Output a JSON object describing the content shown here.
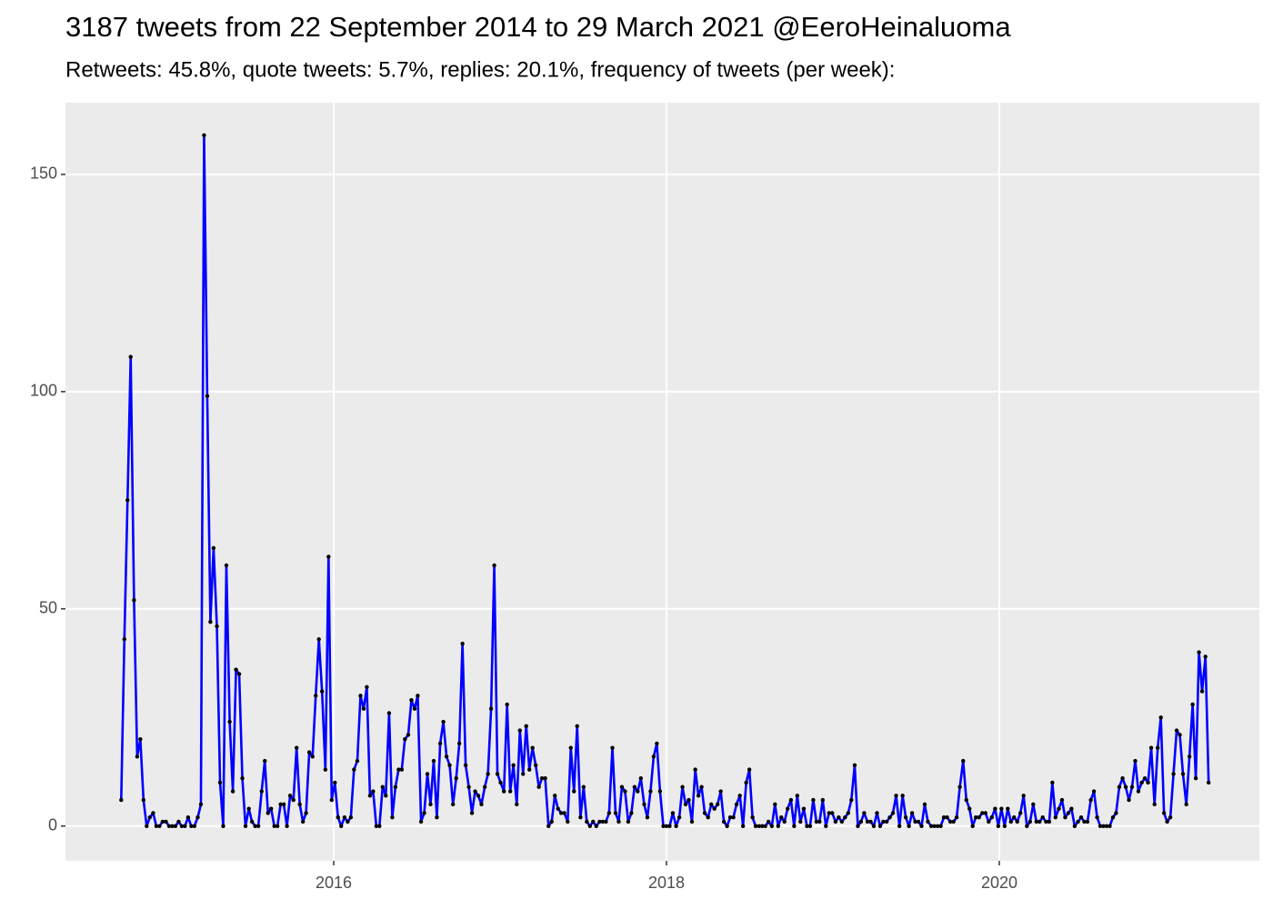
{
  "chart_data": {
    "type": "line",
    "title": "3187 tweets from 22 September 2014 to 29 March 2021 @EeroHeinaluoma",
    "subtitle": "Retweets: 45.8%, quote tweets: 5.7%, replies: 20.1%, frequency of tweets (per week):",
    "color": "#0000ff",
    "point_color": "#000000",
    "panel_color": "#ebebeb",
    "grid": true,
    "xlim": [
      2014.388,
      2021.563
    ],
    "ylim": [
      -8,
      166.5
    ],
    "xticks": [
      2016,
      2018,
      2020
    ],
    "yticks": [
      0,
      50,
      100,
      150
    ],
    "x": [
      2014.723,
      2014.742,
      2014.761,
      2014.78,
      2014.8,
      2014.819,
      2014.838,
      2014.857,
      2014.876,
      2014.895,
      2014.915,
      2014.934,
      2014.953,
      2014.972,
      2014.992,
      2015.011,
      2015.03,
      2015.049,
      2015.068,
      2015.087,
      2015.106,
      2015.125,
      2015.144,
      2015.163,
      2015.183,
      2015.202,
      2015.221,
      2015.24,
      2015.259,
      2015.278,
      2015.298,
      2015.317,
      2015.336,
      2015.355,
      2015.375,
      2015.394,
      2015.413,
      2015.432,
      2015.451,
      2015.47,
      2015.49,
      2015.509,
      2015.528,
      2015.547,
      2015.567,
      2015.586,
      2015.605,
      2015.624,
      2015.643,
      2015.662,
      2015.681,
      2015.7,
      2015.719,
      2015.738,
      2015.758,
      2015.777,
      2015.796,
      2015.815,
      2015.834,
      2015.853,
      2015.873,
      2015.892,
      2015.911,
      2015.93,
      2015.95,
      2015.969,
      2015.988,
      2016.007,
      2016.026,
      2016.045,
      2016.065,
      2016.084,
      2016.103,
      2016.122,
      2016.142,
      2016.161,
      2016.18,
      2016.199,
      2016.218,
      2016.237,
      2016.256,
      2016.275,
      2016.294,
      2016.313,
      2016.333,
      2016.352,
      2016.371,
      2016.39,
      2016.409,
      2016.428,
      2016.448,
      2016.467,
      2016.486,
      2016.505,
      2016.525,
      2016.544,
      2016.563,
      2016.582,
      2016.601,
      2016.62,
      2016.64,
      2016.659,
      2016.678,
      2016.697,
      2016.717,
      2016.736,
      2016.755,
      2016.774,
      2016.793,
      2016.812,
      2016.831,
      2016.85,
      2016.869,
      2016.888,
      2016.908,
      2016.927,
      2016.946,
      2016.965,
      2016.984,
      2017.003,
      2017.023,
      2017.042,
      2017.061,
      2017.08,
      2017.1,
      2017.119,
      2017.138,
      2017.157,
      2017.176,
      2017.195,
      2017.214,
      2017.233,
      2017.252,
      2017.271,
      2017.291,
      2017.31,
      2017.329,
      2017.348,
      2017.367,
      2017.386,
      2017.406,
      2017.425,
      2017.444,
      2017.463,
      2017.483,
      2017.502,
      2017.521,
      2017.54,
      2017.559,
      2017.578,
      2017.598,
      2017.617,
      2017.636,
      2017.655,
      2017.675,
      2017.694,
      2017.713,
      2017.732,
      2017.751,
      2017.77,
      2017.789,
      2017.808,
      2017.827,
      2017.846,
      2017.866,
      2017.885,
      2017.904,
      2017.923,
      2017.942,
      2017.961,
      2017.981,
      2018.0,
      2018.019,
      2018.038,
      2018.058,
      2018.077,
      2018.096,
      2018.115,
      2018.134,
      2018.153,
      2018.173,
      2018.192,
      2018.211,
      2018.23,
      2018.25,
      2018.269,
      2018.288,
      2018.307,
      2018.326,
      2018.345,
      2018.364,
      2018.383,
      2018.402,
      2018.421,
      2018.441,
      2018.46,
      2018.479,
      2018.498,
      2018.517,
      2018.536,
      2018.556,
      2018.575,
      2018.594,
      2018.613,
      2018.633,
      2018.652,
      2018.671,
      2018.69,
      2018.709,
      2018.728,
      2018.748,
      2018.767,
      2018.786,
      2018.805,
      2018.825,
      2018.844,
      2018.863,
      2018.882,
      2018.901,
      2018.92,
      2018.939,
      2018.958,
      2018.977,
      2018.996,
      2019.016,
      2019.035,
      2019.054,
      2019.073,
      2019.092,
      2019.111,
      2019.131,
      2019.15,
      2019.169,
      2019.188,
      2019.208,
      2019.227,
      2019.246,
      2019.265,
      2019.284,
      2019.303,
      2019.323,
      2019.342,
      2019.361,
      2019.38,
      2019.4,
      2019.419,
      2019.438,
      2019.457,
      2019.476,
      2019.495,
      2019.514,
      2019.533,
      2019.552,
      2019.571,
      2019.591,
      2019.61,
      2019.629,
      2019.648,
      2019.667,
      2019.686,
      2019.706,
      2019.725,
      2019.744,
      2019.763,
      2019.783,
      2019.802,
      2019.821,
      2019.84,
      2019.859,
      2019.878,
      2019.898,
      2019.917,
      2019.936,
      2019.955,
      2019.975,
      2019.994,
      2020.013,
      2020.032,
      2020.051,
      2020.07,
      2020.089,
      2020.108,
      2020.127,
      2020.146,
      2020.166,
      2020.185,
      2020.204,
      2020.223,
      2020.242,
      2020.261,
      2020.281,
      2020.3,
      2020.319,
      2020.338,
      2020.358,
      2020.377,
      2020.396,
      2020.415,
      2020.434,
      2020.453,
      2020.473,
      2020.492,
      2020.511,
      2020.53,
      2020.55,
      2020.569,
      2020.588,
      2020.607,
      2020.626,
      2020.645,
      2020.664,
      2020.683,
      2020.702,
      2020.721,
      2020.741,
      2020.76,
      2020.779,
      2020.798,
      2020.817,
      2020.836,
      2020.856,
      2020.875,
      2020.894,
      2020.913,
      2020.933,
      2020.952,
      2020.971,
      2020.99,
      2021.009,
      2021.028,
      2021.047,
      2021.066,
      2021.085,
      2021.104,
      2021.124,
      2021.143,
      2021.162,
      2021.181,
      2021.2,
      2021.219,
      2021.239,
      2021.258
    ],
    "values": [
      6,
      43,
      75,
      108,
      52,
      16,
      20,
      6,
      0,
      2,
      3,
      0,
      0,
      1,
      1,
      0,
      0,
      0,
      1,
      0,
      0,
      2,
      0,
      0,
      2,
      5,
      159,
      99,
      47,
      64,
      46,
      10,
      0,
      60,
      24,
      8,
      36,
      35,
      11,
      0,
      4,
      1,
      0,
      0,
      8,
      15,
      3,
      4,
      0,
      0,
      5,
      5,
      0,
      7,
      6,
      18,
      5,
      1,
      3,
      17,
      16,
      30,
      43,
      31,
      13,
      62,
      6,
      10,
      2,
      0,
      2,
      1,
      2,
      13,
      15,
      30,
      27,
      32,
      7,
      8,
      0,
      0,
      9,
      7,
      26,
      2,
      9,
      13,
      13,
      20,
      21,
      29,
      27,
      30,
      1,
      3,
      12,
      5,
      15,
      2,
      19,
      24,
      16,
      14,
      5,
      11,
      19,
      42,
      14,
      9,
      3,
      8,
      7,
      5,
      9,
      12,
      27,
      60,
      12,
      10,
      8,
      28,
      8,
      14,
      5,
      22,
      12,
      23,
      13,
      18,
      14,
      9,
      11,
      11,
      0,
      1,
      7,
      4,
      3,
      3,
      1,
      18,
      8,
      23,
      2,
      9,
      1,
      0,
      1,
      0,
      1,
      1,
      1,
      3,
      18,
      3,
      1,
      9,
      8,
      1,
      3,
      9,
      8,
      11,
      5,
      2,
      8,
      16,
      19,
      8,
      0,
      0,
      0,
      3,
      0,
      2,
      9,
      5,
      6,
      1,
      13,
      7,
      9,
      3,
      2,
      5,
      4,
      5,
      8,
      1,
      0,
      2,
      2,
      5,
      7,
      0,
      10,
      13,
      2,
      0,
      0,
      0,
      0,
      1,
      0,
      5,
      0,
      2,
      1,
      4,
      6,
      0,
      7,
      1,
      4,
      0,
      0,
      6,
      1,
      1,
      6,
      0,
      3,
      3,
      1,
      2,
      1,
      2,
      3,
      6,
      14,
      0,
      1,
      3,
      1,
      1,
      0,
      3,
      0,
      1,
      1,
      2,
      3,
      7,
      0,
      7,
      2,
      0,
      3,
      1,
      1,
      0,
      5,
      1,
      0,
      0,
      0,
      0,
      2,
      2,
      1,
      1,
      2,
      9,
      15,
      6,
      4,
      0,
      2,
      2,
      3,
      3,
      1,
      2,
      4,
      0,
      4,
      0,
      4,
      1,
      2,
      1,
      3,
      7,
      0,
      1,
      5,
      1,
      1,
      2,
      1,
      1,
      10,
      2,
      4,
      6,
      2,
      3,
      4,
      0,
      1,
      2,
      1,
      1,
      6,
      8,
      2,
      0,
      0,
      0,
      0,
      2,
      3,
      9,
      11,
      9,
      6,
      9,
      15,
      8,
      10,
      11,
      10,
      18,
      5,
      18,
      25,
      3,
      1,
      2,
      12,
      22,
      21,
      12,
      5,
      16,
      28,
      11,
      40,
      31,
      39,
      10
    ]
  }
}
